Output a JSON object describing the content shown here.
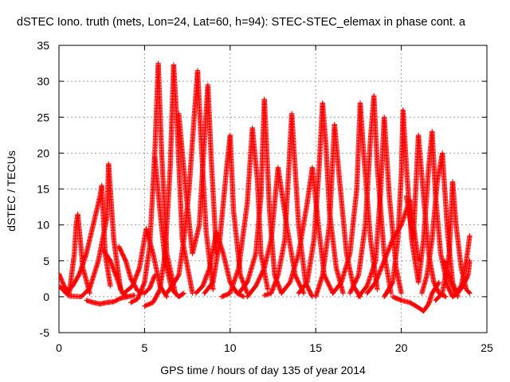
{
  "chart_data": {
    "type": "scatter",
    "title": "dSTEC Iono. truth (mets, Lon=24, Lat=60, h=94): STEC-STEC_elemax in phase cont. a",
    "xlabel": "GPS time / hours of day 135 of year 2014",
    "ylabel": "dSTEC  / TECUs",
    "xlim": [
      0,
      25
    ],
    "ylim": [
      -5,
      35
    ],
    "xticks": [
      0,
      5,
      10,
      15,
      20,
      25
    ],
    "yticks": [
      -5,
      0,
      5,
      10,
      15,
      20,
      25,
      30,
      35
    ],
    "grid": true,
    "marker": "+",
    "series": [
      {
        "name": "",
        "color": "#ff0000",
        "x": [
          0.0,
          0.3,
          0.6,
          0.9,
          1.0,
          1.1,
          1.4,
          1.8
        ],
        "y": [
          3.2,
          1.5,
          0.5,
          6.0,
          10.0,
          11.5,
          4.0,
          0.5
        ]
      },
      {
        "name": "",
        "color": "#ff0000",
        "x": [
          0.0,
          0.6,
          1.3,
          1.8,
          2.3,
          2.8,
          2.9,
          3.2,
          3.6
        ],
        "y": [
          1.5,
          0.1,
          0.0,
          1.2,
          5.0,
          11.0,
          18.5,
          8.0,
          1.0
        ]
      },
      {
        "name": "",
        "color": "#ff0000",
        "x": [
          0.4,
          0.8,
          1.2,
          1.6,
          2.0,
          2.4,
          2.5,
          2.7,
          3.0
        ],
        "y": [
          0.5,
          1.5,
          3.2,
          6.0,
          10.0,
          14.0,
          15.5,
          6.0,
          1.5
        ]
      },
      {
        "name": "",
        "color": "#ff0000",
        "x": [
          1.6,
          2.0,
          2.4,
          2.8,
          3.2,
          3.6,
          4.0
        ],
        "y": [
          -0.5,
          -0.8,
          -1.0,
          -0.8,
          -0.7,
          -0.2,
          0.0
        ]
      },
      {
        "name": "",
        "color": "#ff0000",
        "x": [
          2.6,
          3.0,
          3.4,
          3.7,
          4.0,
          4.4
        ],
        "y": [
          6.5,
          5.0,
          2.5,
          0.5,
          0.0,
          0.2
        ]
      },
      {
        "name": "",
        "color": "#ff0000",
        "x": [
          3.5,
          3.9,
          4.2,
          4.6,
          5.0,
          5.3,
          5.6
        ],
        "y": [
          7.0,
          5.0,
          2.5,
          0.8,
          0.5,
          1.2,
          3.0
        ]
      },
      {
        "name": "",
        "color": "#ff0000",
        "x": [
          3.8,
          4.3,
          4.7,
          5.1,
          5.5,
          5.9,
          6.3
        ],
        "y": [
          0.5,
          1.5,
          4.0,
          9.5,
          6.0,
          1.5,
          0.0
        ]
      },
      {
        "name": "",
        "color": "#ff0000",
        "x": [
          4.2,
          4.6,
          5.0,
          5.3,
          5.6,
          5.8,
          6.0,
          6.3,
          6.8
        ],
        "y": [
          -0.8,
          -0.3,
          2.0,
          7.0,
          20.0,
          32.5,
          20.0,
          6.0,
          0.5
        ]
      },
      {
        "name": "",
        "color": "#ff0000",
        "x": [
          5.0,
          5.5,
          5.9,
          6.2,
          6.5,
          6.7,
          6.9,
          7.2,
          7.8
        ],
        "y": [
          -1.3,
          -0.8,
          1.0,
          6.0,
          18.0,
          32.3,
          24.0,
          8.0,
          0.5
        ]
      },
      {
        "name": "",
        "color": "#ff0000",
        "x": [
          5.6,
          5.9,
          6.2,
          6.6,
          7.0,
          7.3
        ],
        "y": [
          19.5,
          12.0,
          5.0,
          1.0,
          0.0,
          0.5
        ]
      },
      {
        "name": "",
        "color": "#ff0000",
        "x": [
          6.3,
          6.6,
          7.0,
          7.3,
          7.6,
          7.9,
          8.1,
          8.3,
          8.6,
          9.0
        ],
        "y": [
          0.5,
          1.5,
          3.0,
          8.0,
          15.0,
          25.0,
          31.5,
          22.0,
          9.0,
          1.0
        ]
      },
      {
        "name": "",
        "color": "#ff0000",
        "x": [
          7.0,
          7.4,
          7.8,
          8.2,
          8.5,
          8.7,
          8.9,
          9.2
        ],
        "y": [
          25.5,
          15.0,
          6.0,
          10.0,
          22.0,
          29.5,
          19.0,
          6.0
        ]
      },
      {
        "name": "",
        "color": "#ff0000",
        "x": [
          8.0,
          8.4,
          8.8,
          9.2,
          9.6,
          10.0,
          10.4,
          10.8
        ],
        "y": [
          0.5,
          1.5,
          4.0,
          9.0,
          6.0,
          2.0,
          0.5,
          0.0
        ]
      },
      {
        "name": "",
        "color": "#ff0000",
        "x": [
          8.5,
          9.0,
          9.4,
          9.8,
          10.0,
          10.2,
          10.6,
          11.0
        ],
        "y": [
          0.5,
          2.0,
          8.0,
          18.0,
          22.5,
          12.0,
          3.0,
          0.5
        ]
      },
      {
        "name": "",
        "color": "#ff0000",
        "x": [
          9.5,
          10.0,
          10.5,
          11.0,
          11.3,
          11.6,
          11.8,
          12.2
        ],
        "y": [
          0.0,
          0.5,
          4.0,
          13.0,
          23.5,
          16.0,
          6.0,
          1.0
        ]
      },
      {
        "name": "",
        "color": "#ff0000",
        "x": [
          10.5,
          11.0,
          11.5,
          11.8,
          12.0,
          12.3,
          12.6,
          13.0
        ],
        "y": [
          0.5,
          2.0,
          6.0,
          14.0,
          27.5,
          12.0,
          3.0,
          0.5
        ]
      },
      {
        "name": "",
        "color": "#ff0000",
        "x": [
          11.0,
          11.5,
          12.0,
          12.4,
          12.8,
          13.3,
          13.8,
          14.3
        ],
        "y": [
          0.0,
          1.5,
          4.0,
          8.0,
          18.0,
          10.0,
          3.0,
          0.5
        ]
      },
      {
        "name": "",
        "color": "#ff0000",
        "x": [
          12.0,
          12.4,
          12.8,
          13.2,
          13.6,
          14.0,
          14.4,
          14.8
        ],
        "y": [
          0.2,
          0.5,
          3.0,
          8.0,
          25.5,
          10.0,
          2.0,
          0.0
        ]
      },
      {
        "name": "",
        "color": "#ff0000",
        "x": [
          13.0,
          13.5,
          14.0,
          14.5,
          14.8,
          15.2,
          15.5,
          16.0
        ],
        "y": [
          0.5,
          2.0,
          6.0,
          13.0,
          18.0,
          9.0,
          3.0,
          0.5
        ]
      },
      {
        "name": "",
        "color": "#ff0000",
        "x": [
          14.0,
          14.5,
          14.9,
          15.2,
          15.4,
          15.6,
          15.8,
          16.2,
          16.6
        ],
        "y": [
          0.5,
          2.0,
          8.0,
          18.0,
          27.0,
          21.0,
          12.0,
          4.0,
          0.5
        ]
      },
      {
        "name": "",
        "color": "#ff0000",
        "x": [
          15.0,
          15.4,
          15.8,
          16.1,
          16.4,
          16.8,
          17.2,
          17.6
        ],
        "y": [
          0.0,
          3.0,
          10.0,
          24.0,
          16.0,
          6.0,
          1.5,
          0.0
        ]
      },
      {
        "name": "",
        "color": "#ff0000",
        "x": [
          16.0,
          16.5,
          17.0,
          17.4,
          17.6,
          17.8,
          18.2,
          18.6
        ],
        "y": [
          0.5,
          2.0,
          6.0,
          15.0,
          27.0,
          20.0,
          8.0,
          1.0
        ]
      },
      {
        "name": "",
        "color": "#ff0000",
        "x": [
          17.0,
          17.5,
          17.9,
          18.2,
          18.4,
          18.6,
          19.0,
          19.4
        ],
        "y": [
          0.5,
          3.0,
          10.0,
          22.0,
          28.0,
          18.0,
          6.0,
          0.5
        ]
      },
      {
        "name": "",
        "color": "#ff0000",
        "x": [
          17.5,
          18.0,
          18.5,
          18.8,
          19.0,
          19.3,
          19.7,
          20.0
        ],
        "y": [
          0.0,
          1.5,
          5.0,
          15.0,
          25.0,
          14.0,
          4.0,
          0.5
        ]
      },
      {
        "name": "",
        "color": "#ff0000",
        "x": [
          18.0,
          18.5,
          19.0,
          19.5,
          20.0,
          20.5,
          21.0
        ],
        "y": [
          0.5,
          2.0,
          5.0,
          8.0,
          10.0,
          13.5,
          5.0
        ]
      },
      {
        "name": "",
        "color": "#ff0000",
        "x": [
          19.0,
          19.5,
          19.8,
          20.0,
          20.1,
          20.3,
          20.6,
          21.0
        ],
        "y": [
          0.0,
          2.0,
          8.0,
          17.0,
          26.0,
          18.0,
          8.0,
          2.0
        ]
      },
      {
        "name": "",
        "color": "#ff0000",
        "x": [
          19.5,
          20.0,
          20.5,
          21.0,
          21.3,
          21.6,
          21.8,
          22.2
        ],
        "y": [
          0.0,
          -0.5,
          -0.8,
          -1.5,
          -2.0,
          -1.0,
          0.5,
          2.0
        ]
      },
      {
        "name": "",
        "color": "#ff0000",
        "x": [
          20.3,
          20.7,
          21.0,
          21.3,
          21.6,
          21.9,
          22.2,
          22.6
        ],
        "y": [
          14.0,
          8.0,
          22.5,
          14.0,
          6.0,
          2.0,
          0.5,
          0.0
        ]
      },
      {
        "name": "",
        "color": "#ff0000",
        "x": [
          21.0,
          21.3,
          21.6,
          21.8,
          22.0,
          22.3,
          22.7,
          23.0
        ],
        "y": [
          2.0,
          8.0,
          18.0,
          23.0,
          14.0,
          6.0,
          1.5,
          0.0
        ]
      },
      {
        "name": "",
        "color": "#ff0000",
        "x": [
          21.2,
          21.5,
          21.8,
          22.1,
          22.4,
          22.7,
          23.0,
          23.3
        ],
        "y": [
          0.5,
          3.0,
          8.0,
          16.0,
          20.0,
          9.0,
          2.0,
          0.0
        ]
      },
      {
        "name": "",
        "color": "#ff0000",
        "x": [
          22.0,
          22.4,
          22.8,
          23.0,
          23.2,
          23.5,
          23.8,
          24.0
        ],
        "y": [
          -0.5,
          0.5,
          6.0,
          16.0,
          10.0,
          4.0,
          1.0,
          0.5
        ]
      },
      {
        "name": "",
        "color": "#ff0000",
        "x": [
          22.5,
          22.9,
          23.2,
          23.5,
          23.8,
          24.0
        ],
        "y": [
          5.0,
          2.0,
          0.5,
          1.5,
          5.0,
          8.5
        ]
      },
      {
        "name": "",
        "color": "#ff0000",
        "x": [
          23.0,
          23.3,
          23.6,
          23.9,
          24.0
        ],
        "y": [
          0.0,
          0.5,
          1.5,
          3.0,
          5.0
        ]
      }
    ]
  }
}
